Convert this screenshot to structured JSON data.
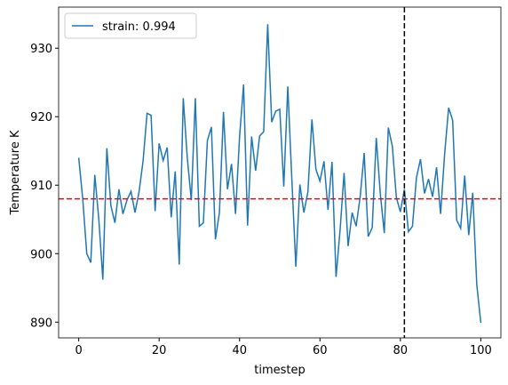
{
  "chart_data": {
    "type": "line",
    "xlabel": "timestep",
    "ylabel": "Temperature K",
    "x": [
      0,
      1,
      2,
      3,
      4,
      5,
      6,
      7,
      8,
      9,
      10,
      11,
      12,
      13,
      14,
      15,
      16,
      17,
      18,
      19,
      20,
      21,
      22,
      23,
      24,
      25,
      26,
      27,
      28,
      29,
      30,
      31,
      32,
      33,
      34,
      35,
      36,
      37,
      38,
      39,
      40,
      41,
      42,
      43,
      44,
      45,
      46,
      47,
      48,
      49,
      50,
      51,
      52,
      53,
      54,
      55,
      56,
      57,
      58,
      59,
      60,
      61,
      62,
      63,
      64,
      65,
      66,
      67,
      68,
      69,
      70,
      71,
      72,
      73,
      74,
      75,
      76,
      77,
      78,
      79,
      80,
      81,
      82,
      83,
      84,
      85,
      86,
      87,
      88,
      89,
      90,
      91,
      92,
      93,
      94,
      95,
      96,
      97,
      98,
      99,
      100
    ],
    "series": [
      {
        "name": "strain: 0.994",
        "color": "#1f77b4",
        "values": [
          914,
          908,
          900,
          898.7,
          911.5,
          905,
          896.2,
          915.4,
          907,
          904.5,
          909.4,
          905.8,
          907.8,
          909.1,
          906,
          909,
          913.5,
          920.5,
          920.2,
          906.2,
          916.1,
          913.6,
          915.5,
          905.3,
          912,
          898.4,
          922.7,
          914,
          907.8,
          922.7,
          904,
          904.5,
          916.5,
          918.5,
          902.1,
          906,
          920.7,
          909.4,
          913.1,
          905.8,
          917,
          924.7,
          904.1,
          917.1,
          912.1,
          917.2,
          917.8,
          933.5,
          919.2,
          920.8,
          921.1,
          909.8,
          924.4,
          910.9,
          898.1,
          910.1,
          906,
          909,
          919.6,
          912.3,
          910.6,
          913.5,
          906.4,
          913.4,
          896.6,
          903.4,
          911.8,
          901.1,
          906,
          904,
          908.3,
          914.7,
          902.5,
          903.8,
          916.9,
          908.8,
          903,
          918.4,
          915.7,
          908.2,
          906.1,
          909.4,
          903.2,
          904,
          911.1,
          913.8,
          908.8,
          910.9,
          908.3,
          912.6,
          905.8,
          914.5,
          921.3,
          919.5,
          904.9,
          903.7,
          911.4,
          902.7,
          908.9,
          895.5,
          889.9
        ]
      }
    ],
    "reference_lines": [
      {
        "axis": "y",
        "value": 908,
        "color": "#ff0000"
      },
      {
        "axis": "x",
        "value": 81,
        "color": "#000000"
      }
    ],
    "xlim": [
      -5,
      105
    ],
    "xticks": [
      0,
      20,
      40,
      60,
      80,
      100
    ],
    "ylim": [
      887.7,
      936
    ],
    "yticks": [
      890,
      900,
      910,
      920,
      930
    ],
    "legend": "upper left"
  }
}
